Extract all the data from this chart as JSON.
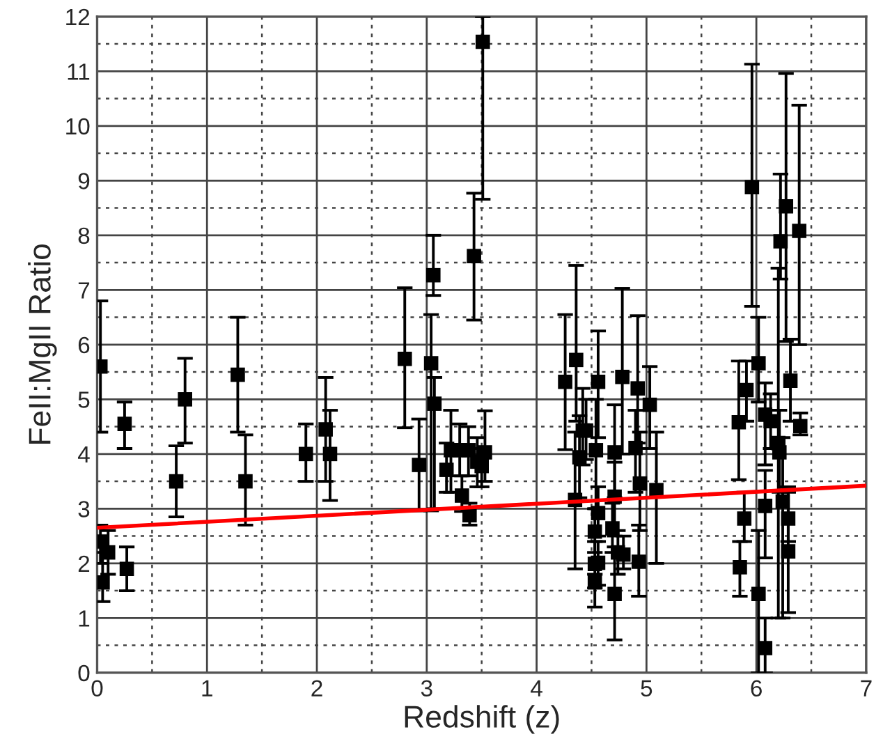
{
  "chart_data": {
    "type": "scatter",
    "xlabel": "Redshift (z)",
    "ylabel": "FeII:MgII Ratio",
    "xlim": [
      0,
      7
    ],
    "ylim": [
      0,
      12
    ],
    "xticks": [
      0,
      1,
      2,
      3,
      4,
      5,
      6,
      7
    ],
    "yticks": [
      0,
      1,
      2,
      3,
      4,
      5,
      6,
      7,
      8,
      9,
      10,
      11,
      12
    ],
    "grid": true,
    "series": [
      {
        "color": "#000000",
        "marker": "square",
        "x": [
          0.03,
          0.05,
          0.03,
          0.1,
          0.25,
          0.27,
          0.72,
          0.8,
          1.28,
          1.35,
          1.9,
          2.08,
          2.12,
          2.8,
          2.93,
          3.06,
          3.04,
          3.07,
          3.18,
          3.22,
          3.3,
          3.32,
          3.39,
          3.38,
          3.46,
          3.43,
          3.51,
          3.53,
          3.5,
          4.26,
          4.36,
          4.35,
          4.39,
          4.42,
          4.45,
          4.56,
          4.54,
          4.56,
          4.53,
          4.53,
          4.56,
          4.53,
          4.71,
          4.71,
          4.69,
          4.74,
          4.79,
          4.71,
          4.78,
          4.92,
          4.9,
          4.94,
          4.93,
          5.03,
          5.09,
          5.96,
          5.84,
          5.91,
          6.02,
          6.08,
          6.13,
          5.89,
          5.85,
          6.02,
          6.08,
          6.08,
          6.22,
          6.27,
          6.39,
          6.31,
          6.4,
          6.2,
          6.21,
          6.24,
          6.29,
          6.29
        ],
        "values": [
          5.6,
          1.65,
          2.4,
          2.2,
          4.55,
          1.9,
          3.5,
          5.0,
          5.45,
          3.5,
          4.0,
          4.45,
          4.0,
          5.74,
          3.8,
          7.27,
          5.66,
          4.92,
          3.71,
          4.07,
          4.07,
          3.24,
          2.88,
          4.07,
          3.86,
          7.62,
          11.54,
          4.03,
          3.78,
          5.32,
          5.72,
          3.16,
          3.94,
          4.43,
          4.43,
          5.32,
          4.07,
          2.92,
          2.58,
          1.99,
          2.01,
          1.65,
          4.03,
          3.22,
          2.64,
          2.2,
          2.16,
          1.44,
          5.41,
          5.2,
          4.11,
          3.46,
          2.03,
          4.9,
          3.34,
          8.88,
          4.58,
          5.17,
          5.66,
          4.72,
          4.6,
          2.82,
          1.93,
          1.44,
          3.05,
          0.45,
          7.89,
          8.53,
          8.08,
          5.34,
          4.51,
          4.2,
          4.03,
          3.13,
          2.82,
          2.22
        ],
        "errors": [
          [
            4.4,
            6.8
          ],
          [
            1.3,
            2.2
          ],
          [
            2.0,
            2.7
          ],
          [
            1.8,
            2.6
          ],
          [
            4.1,
            4.95
          ],
          [
            1.5,
            2.3
          ],
          [
            2.85,
            4.15
          ],
          [
            4.2,
            5.75
          ],
          [
            4.4,
            6.5
          ],
          [
            2.7,
            4.35
          ],
          [
            3.5,
            4.55
          ],
          [
            3.5,
            5.4
          ],
          [
            3.15,
            4.8
          ],
          [
            4.48,
            7.04
          ],
          [
            2.96,
            4.64
          ],
          [
            6.9,
            8.0
          ],
          [
            2.96,
            6.55
          ],
          [
            3.0,
            5.4
          ],
          [
            3.3,
            4.2
          ],
          [
            3.3,
            4.8
          ],
          [
            3.6,
            4.55
          ],
          [
            2.95,
            3.6
          ],
          [
            2.7,
            3.1
          ],
          [
            3.6,
            4.5
          ],
          [
            3.4,
            4.3
          ],
          [
            6.45,
            8.77
          ],
          [
            8.66,
            12
          ],
          [
            3.5,
            4.79
          ],
          [
            3.4,
            4.1
          ],
          [
            4.08,
            6.55
          ],
          [
            4.6,
            7.45
          ],
          [
            1.9,
            4.4
          ],
          [
            3.2,
            4.7
          ],
          [
            3.8,
            5.2
          ],
          [
            3.9,
            5.0
          ],
          [
            4.3,
            6.25
          ],
          [
            3.0,
            5.0
          ],
          [
            2.5,
            3.4
          ],
          [
            2.2,
            3.0
          ],
          [
            1.55,
            2.4
          ],
          [
            1.6,
            2.4
          ],
          [
            1.2,
            1.8
          ],
          [
            3.2,
            4.9
          ],
          [
            2.5,
            3.85
          ],
          [
            2.2,
            3.1
          ],
          [
            1.8,
            2.6
          ],
          [
            1.9,
            2.5
          ],
          [
            0.6,
            2.3
          ],
          [
            4.0,
            7.03
          ],
          [
            4.2,
            6.53
          ],
          [
            3.3,
            4.8
          ],
          [
            2.6,
            4.4
          ],
          [
            1.4,
            2.7
          ],
          [
            4.1,
            5.6
          ],
          [
            2.0,
            4.4
          ],
          [
            6.7,
            11.13
          ],
          [
            3.53,
            5.7
          ],
          [
            4.6,
            5.7
          ],
          [
            4.95,
            6.5
          ],
          [
            3.8,
            5.3
          ],
          [
            4.1,
            5.1
          ],
          [
            2.4,
            3.3
          ],
          [
            1.4,
            2.4
          ],
          [
            0,
            2.6
          ],
          [
            2.1,
            3.7
          ],
          [
            0,
            1.0
          ],
          [
            7.2,
            9.12
          ],
          [
            6.06,
            10.96
          ],
          [
            6.0,
            10.38
          ],
          [
            4.6,
            6.1
          ],
          [
            4.35,
            4.75
          ],
          [
            1.0,
            7.4
          ],
          [
            3.3,
            4.8
          ],
          [
            1.0,
            4.3
          ],
          [
            2.4,
            3.4
          ],
          [
            1.1,
            3.3
          ]
        ]
      },
      {
        "type": "line",
        "color": "#ff0000",
        "x": [
          0,
          7
        ],
        "values": [
          2.65,
          3.42
        ]
      }
    ]
  }
}
